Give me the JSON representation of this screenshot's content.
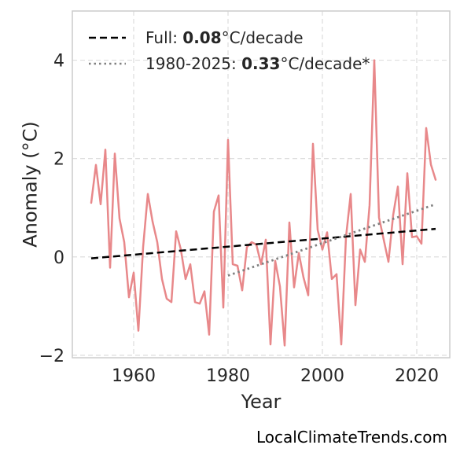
{
  "chart_data": {
    "type": "line",
    "xlabel": "Year",
    "ylabel": "Anomaly (°C)",
    "xlim": [
      1947,
      2027
    ],
    "ylim": [
      -2.05,
      5.0
    ],
    "x_ticks": [
      1960,
      1980,
      2000,
      2020
    ],
    "y_ticks": [
      -2,
      0,
      2,
      4
    ],
    "y_tick_labels": [
      "−2",
      "0",
      "2",
      "4"
    ],
    "grid": true,
    "legend_position": "top-left",
    "series": [
      {
        "style": "solid",
        "color": "#e8888a",
        "x": [
          1951,
          1952,
          1953,
          1954,
          1955,
          1956,
          1957,
          1958,
          1959,
          1960,
          1961,
          1962,
          1963,
          1964,
          1965,
          1966,
          1967,
          1968,
          1969,
          1970,
          1971,
          1972,
          1973,
          1974,
          1975,
          1976,
          1977,
          1978,
          1979,
          1980,
          1981,
          1982,
          1983,
          1984,
          1985,
          1986,
          1987,
          1988,
          1989,
          1990,
          1991,
          1992,
          1993,
          1994,
          1995,
          1996,
          1997,
          1998,
          1999,
          2000,
          2001,
          2002,
          2003,
          2004,
          2005,
          2006,
          2007,
          2008,
          2009,
          2010,
          2011,
          2012,
          2013,
          2014,
          2015,
          2016,
          2017,
          2018,
          2019,
          2020,
          2021,
          2022,
          2023,
          2024
        ],
        "y": [
          1.1,
          1.87,
          1.07,
          2.18,
          -0.22,
          2.1,
          0.78,
          0.3,
          -0.82,
          -0.32,
          -1.5,
          0.2,
          1.28,
          0.72,
          0.3,
          -0.45,
          -0.85,
          -0.92,
          0.52,
          0.15,
          -0.45,
          -0.15,
          -0.92,
          -0.95,
          -0.7,
          -1.58,
          0.92,
          1.25,
          -1.03,
          2.38,
          -0.15,
          -0.18,
          -0.68,
          0.2,
          0.3,
          0.25,
          -0.15,
          0.35,
          -1.78,
          -0.08,
          -0.6,
          -1.8,
          0.7,
          -0.62,
          0.08,
          -0.42,
          -0.78,
          2.3,
          0.55,
          0.15,
          0.5,
          -0.45,
          -0.35,
          -1.78,
          0.4,
          1.28,
          -0.98,
          0.15,
          -0.1,
          1.05,
          4.0,
          0.8,
          0.35,
          -0.1,
          0.85,
          1.43,
          -0.15,
          1.7,
          0.4,
          0.42,
          0.27,
          2.62,
          1.88,
          1.57
        ]
      },
      {
        "style": "dashed",
        "color": "#000000",
        "x": [
          1951,
          2024
        ],
        "y": [
          -0.03,
          0.57
        ]
      },
      {
        "style": "dotted",
        "color": "#808080",
        "x": [
          1980,
          2024
        ],
        "y": [
          -0.38,
          1.07
        ]
      }
    ],
    "legend": [
      {
        "style": "dashed",
        "color": "#000000",
        "prefix": "Full: ",
        "value": "0.08",
        "suffix": "°C/decade"
      },
      {
        "style": "dotted",
        "color": "#808080",
        "prefix": "1980-2025: ",
        "value": "0.33",
        "suffix": "°C/decade*"
      }
    ]
  },
  "footer": {
    "source": "LocalClimateTrends.com"
  }
}
